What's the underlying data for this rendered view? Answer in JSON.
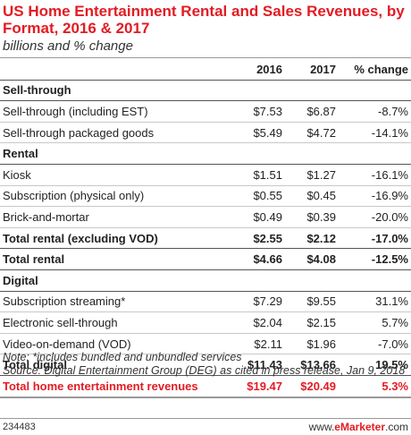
{
  "title": "US Home Entertainment Rental and Sales Revenues, by Format, 2016 & 2017",
  "subtitle": "billions and % change",
  "columns": [
    "",
    "2016",
    "2017",
    "% change"
  ],
  "rows": [
    {
      "type": "section",
      "label": "Sell-through"
    },
    {
      "type": "item",
      "label": "Sell-through (including EST)",
      "v2016": "$7.53",
      "v2017": "$6.87",
      "change": "-8.7%"
    },
    {
      "type": "item",
      "label": "Sell-through packaged goods",
      "v2016": "$5.49",
      "v2017": "$4.72",
      "change": "-14.1%"
    },
    {
      "type": "section",
      "label": "Rental"
    },
    {
      "type": "item",
      "label": "Kiosk",
      "v2016": "$1.51",
      "v2017": "$1.27",
      "change": "-16.1%"
    },
    {
      "type": "item",
      "label": "Subscription (physical only)",
      "v2016": "$0.55",
      "v2017": "$0.45",
      "change": "-16.9%"
    },
    {
      "type": "item",
      "label": "Brick-and-mortar",
      "v2016": "$0.49",
      "v2017": "$0.39",
      "change": "-20.0%"
    },
    {
      "type": "total",
      "label": "Total rental (excluding VOD)",
      "v2016": "$2.55",
      "v2017": "$2.12",
      "change": "-17.0%"
    },
    {
      "type": "total",
      "label": "Total rental",
      "v2016": "$4.66",
      "v2017": "$4.08",
      "change": "-12.5%"
    },
    {
      "type": "section",
      "label": "Digital"
    },
    {
      "type": "item",
      "label": "Subscription streaming*",
      "v2016": "$7.29",
      "v2017": "$9.55",
      "change": "31.1%"
    },
    {
      "type": "item",
      "label": "Electronic sell-through",
      "v2016": "$2.04",
      "v2017": "$2.15",
      "change": "5.7%"
    },
    {
      "type": "item",
      "label": "Video-on-demand (VOD)",
      "v2016": "$2.11",
      "v2017": "$1.96",
      "change": "-7.0%"
    },
    {
      "type": "total",
      "label": "Total digital",
      "v2016": "$11.43",
      "v2017": "$13.66",
      "change": "19.5%"
    },
    {
      "type": "grand",
      "label": "Total home entertainment revenues",
      "v2016": "$19.47",
      "v2017": "$20.49",
      "change": "5.3%"
    }
  ],
  "note": "Note: *includes bundled and unbundled services",
  "source": "Source: Digital Entertainment Group (DEG) as cited in press release, Jan 9, 2018",
  "chart_id": "234483",
  "brand_prefix": "www.",
  "brand_name": "eMarketer",
  "brand_suffix": ".com",
  "colors": {
    "accent": "#e31b23",
    "text": "#222222"
  }
}
